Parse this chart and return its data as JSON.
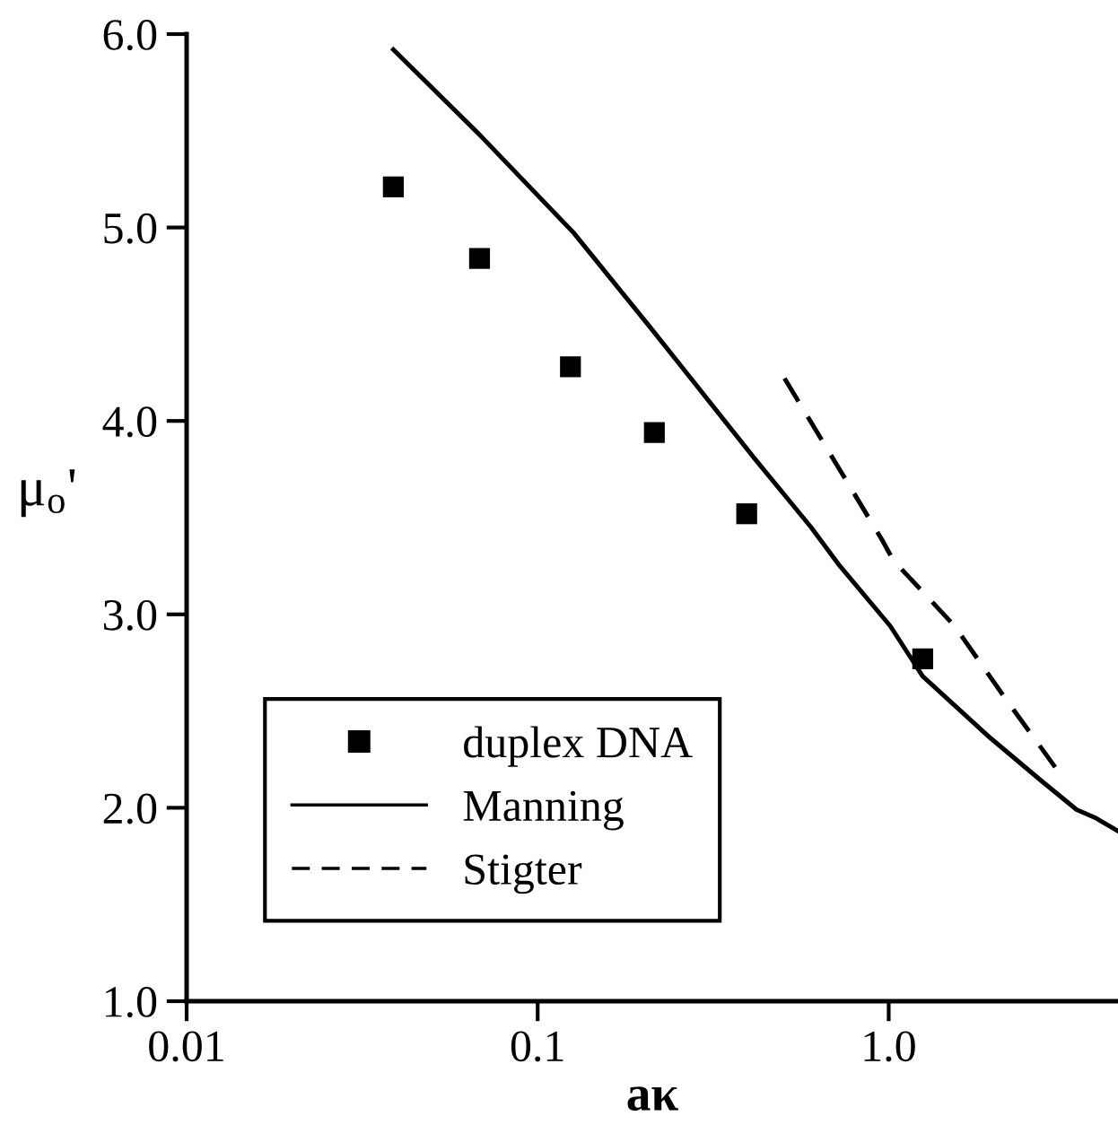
{
  "chart_data": {
    "type": "scatter",
    "xlabel": "aκ",
    "ylabel": "μ$_{o}$'",
    "log": "x",
    "xlim": [
      0.01,
      4.5
    ],
    "xticks": [
      0.01,
      0.1,
      {
        "value": 1,
        "label": "1.0"
      }
    ],
    "ylim": [
      1,
      6
    ],
    "yticks": [
      {
        "value": 1,
        "label": "1.0"
      },
      {
        "value": 2,
        "label": "2.0"
      },
      {
        "value": 3,
        "label": "3.0"
      },
      {
        "value": 4,
        "label": "4.0"
      },
      {
        "value": 5,
        "label": "5.0"
      },
      {
        "value": 6,
        "label": "6.0"
      }
    ],
    "grid": false,
    "legend": "bottom left",
    "series": [
      {
        "name": "duplex DNA",
        "marker": "square",
        "color": "#000000",
        "x": [
          0.0388,
          0.0683,
          0.124,
          0.215,
          0.394,
          1.25
        ],
        "values": [
          5.21,
          4.84,
          4.28,
          3.94,
          3.52,
          2.77
        ]
      },
      {
        "name": "Manning",
        "type": "line",
        "line_style": "solid",
        "color": "#000000",
        "x": [
          0.0388,
          0.0683,
          0.127,
          0.208,
          0.413,
          0.601,
          0.726,
          1.01,
          1.25,
          1.95,
          2.72,
          3.43,
          3.86,
          4.5
        ],
        "values": [
          5.92,
          5.48,
          4.97,
          4.49,
          3.81,
          3.45,
          3.25,
          2.94,
          2.68,
          2.36,
          2.14,
          1.99,
          1.95,
          1.88
        ]
      },
      {
        "name": "Stigter",
        "type": "line",
        "line_style": "dashed",
        "color": "#000000",
        "x": [
          0.505,
          0.954,
          1.03,
          1.54,
          2.14,
          2.98
        ],
        "values": [
          4.22,
          3.39,
          3.28,
          2.94,
          2.57,
          2.21
        ]
      }
    ]
  }
}
